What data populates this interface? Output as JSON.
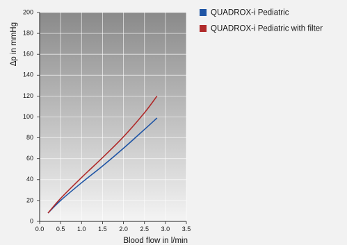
{
  "chart_data": {
    "type": "line",
    "title": "",
    "xlabel": "Blood flow in l/min",
    "ylabel": "Δp in mmHg",
    "xlim": [
      0.0,
      3.5
    ],
    "ylim": [
      0,
      200
    ],
    "x_ticks": [
      "0.0",
      "0.5",
      "1.0",
      "1.5",
      "2.0",
      "2.5",
      "3.0",
      "3.5"
    ],
    "y_ticks": [
      "0",
      "20",
      "40",
      "60",
      "80",
      "100",
      "120",
      "140",
      "160",
      "180",
      "200"
    ],
    "grid": true,
    "legend_position": "right",
    "series": [
      {
        "name": "QUADROX-i Pediatric",
        "color": "#1f55a5",
        "x": [
          0.2,
          0.5,
          1.0,
          1.5,
          2.0,
          2.5,
          2.8
        ],
        "y": [
          8,
          20,
          37,
          53,
          70,
          88,
          99
        ]
      },
      {
        "name": "QUADROX-i Pediatric with filter",
        "color": "#b02a2a",
        "x": [
          0.2,
          0.5,
          1.0,
          1.5,
          2.0,
          2.5,
          2.8
        ],
        "y": [
          8,
          22,
          42,
          61,
          81,
          104,
          120
        ]
      }
    ]
  }
}
